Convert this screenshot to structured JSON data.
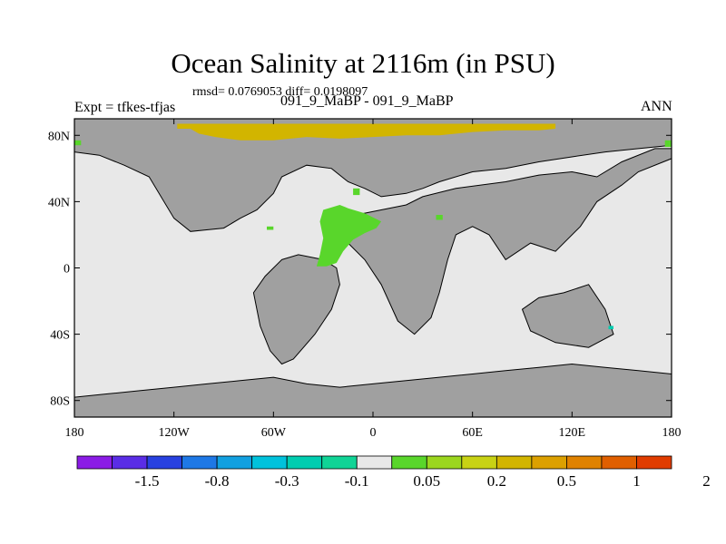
{
  "title": "Ocean Salinity at 2116m (in PSU)",
  "stats_text": "rmsd= 0.0769053 diff= 0.0198097",
  "experiment_label": "Expt = tfkes-tfjas",
  "subtitle": "091_9_MaBP - 091_9_MaBP",
  "season_label": "ANN",
  "colors": {
    "ocean_neutral": "#e8e8e8",
    "land": "#a0a0a0",
    "positive_small": "#59d62b",
    "positive_mid": "#d2b500",
    "negative_small": "#00cdb0"
  },
  "chart_data": {
    "type": "heatmap",
    "projection": "cylindrical-equidistant",
    "xlim": [
      -180,
      180
    ],
    "ylim": [
      -90,
      90
    ],
    "x_ticks": [
      {
        "value": -180,
        "label": "180"
      },
      {
        "value": -120,
        "label": "120W"
      },
      {
        "value": -60,
        "label": "60W"
      },
      {
        "value": 0,
        "label": "0"
      },
      {
        "value": 60,
        "label": "60E"
      },
      {
        "value": 120,
        "label": "120E"
      },
      {
        "value": 180,
        "label": "180"
      }
    ],
    "y_ticks": [
      {
        "value": 80,
        "label": "80N"
      },
      {
        "value": 40,
        "label": "40N"
      },
      {
        "value": 0,
        "label": "0"
      },
      {
        "value": -40,
        "label": "40S"
      },
      {
        "value": -80,
        "label": "80S"
      }
    ],
    "colorbar": {
      "colors": [
        "#8b1ce6",
        "#5a2de6",
        "#2841e0",
        "#1e78e6",
        "#12a0e0",
        "#00c2dc",
        "#00cdb0",
        "#10d496",
        "#e8e8e8",
        "#59d62b",
        "#9bd61e",
        "#c8d214",
        "#d2b500",
        "#dca000",
        "#e08200",
        "#e05f00",
        "#e03c00"
      ],
      "labels": [
        "-1.5",
        "-0.8",
        "-0.3",
        "-0.1",
        "0.05",
        "0.2",
        "0.5",
        "1",
        "2"
      ],
      "label_boundaries": [
        2,
        4,
        6,
        8,
        10,
        12,
        14,
        16,
        18
      ]
    },
    "anomaly_regions": [
      {
        "name": "arctic-high-anomaly",
        "class": "positive_mid",
        "polygon": [
          [
            -118,
            86
          ],
          [
            -118,
            84
          ],
          [
            -110,
            84
          ],
          [
            -105,
            81
          ],
          [
            -95,
            79
          ],
          [
            -80,
            77
          ],
          [
            -60,
            77
          ],
          [
            -40,
            79
          ],
          [
            -20,
            78
          ],
          [
            0,
            79
          ],
          [
            20,
            80
          ],
          [
            40,
            80
          ],
          [
            60,
            82
          ],
          [
            80,
            83
          ],
          [
            100,
            83
          ],
          [
            110,
            84
          ],
          [
            110,
            87
          ],
          [
            -118,
            87
          ]
        ]
      },
      {
        "name": "north-atlantic-anomaly",
        "class": "positive_small",
        "polygon": [
          [
            -30,
            35
          ],
          [
            -20,
            38
          ],
          [
            -15,
            36
          ],
          [
            -5,
            33
          ],
          [
            5,
            28
          ],
          [
            2,
            24
          ],
          [
            -5,
            21
          ],
          [
            -12,
            17
          ],
          [
            -18,
            10
          ],
          [
            -22,
            3
          ],
          [
            -28,
            1
          ],
          [
            -34,
            1
          ],
          [
            -32,
            8
          ],
          [
            -30,
            18
          ],
          [
            -32,
            28
          ]
        ]
      },
      {
        "name": "atlantic-small-patch-1",
        "class": "positive_small",
        "polygon": [
          [
            -12,
            48
          ],
          [
            -8,
            48
          ],
          [
            -8,
            44
          ],
          [
            -12,
            44
          ]
        ]
      },
      {
        "name": "atlantic-small-patch-2",
        "class": "positive_small",
        "polygon": [
          [
            38,
            32
          ],
          [
            42,
            32
          ],
          [
            42,
            29
          ],
          [
            38,
            29
          ]
        ]
      },
      {
        "name": "pacific-small-patch",
        "class": "positive_small",
        "polygon": [
          [
            -64,
            25
          ],
          [
            -60,
            25
          ],
          [
            -60,
            23
          ],
          [
            -64,
            23
          ]
        ]
      },
      {
        "name": "northwest-edge-patch",
        "class": "positive_small",
        "polygon": [
          [
            -180,
            77
          ],
          [
            -176,
            77
          ],
          [
            -176,
            74
          ],
          [
            -180,
            74
          ]
        ]
      },
      {
        "name": "northeast-edge-patch",
        "class": "positive_small",
        "polygon": [
          [
            176,
            77
          ],
          [
            180,
            77
          ],
          [
            180,
            73
          ],
          [
            176,
            73
          ]
        ]
      },
      {
        "name": "southeast-small-patch",
        "class": "negative_small",
        "polygon": [
          [
            142,
            -35
          ],
          [
            145,
            -35
          ],
          [
            145,
            -37
          ],
          [
            142,
            -37
          ]
        ]
      }
    ]
  },
  "land_polygons": [
    {
      "name": "north-america-eurasia-north",
      "polygon": [
        [
          -180,
          90
        ],
        [
          180,
          90
        ],
        [
          180,
          74
        ],
        [
          160,
          72
        ],
        [
          140,
          70
        ],
        [
          120,
          67
        ],
        [
          100,
          64
        ],
        [
          80,
          60
        ],
        [
          60,
          58
        ],
        [
          40,
          52
        ],
        [
          30,
          48
        ],
        [
          20,
          45
        ],
        [
          5,
          43
        ],
        [
          -5,
          48
        ],
        [
          -15,
          52
        ],
        [
          -25,
          60
        ],
        [
          -40,
          62
        ],
        [
          -55,
          55
        ],
        [
          -60,
          45
        ],
        [
          -70,
          35
        ],
        [
          -80,
          30
        ],
        [
          -90,
          24
        ],
        [
          -110,
          22
        ],
        [
          -120,
          30
        ],
        [
          -135,
          55
        ],
        [
          -150,
          62
        ],
        [
          -165,
          68
        ],
        [
          -180,
          70
        ]
      ]
    },
    {
      "name": "eurasia-africa-india",
      "polygon": [
        [
          30,
          43
        ],
        [
          50,
          48
        ],
        [
          80,
          52
        ],
        [
          100,
          56
        ],
        [
          120,
          58
        ],
        [
          135,
          55
        ],
        [
          150,
          64
        ],
        [
          170,
          72
        ],
        [
          180,
          72
        ],
        [
          180,
          66
        ],
        [
          160,
          58
        ],
        [
          150,
          50
        ],
        [
          135,
          40
        ],
        [
          125,
          25
        ],
        [
          110,
          10
        ],
        [
          95,
          15
        ],
        [
          80,
          5
        ],
        [
          70,
          20
        ],
        [
          60,
          25
        ],
        [
          50,
          20
        ],
        [
          45,
          5
        ],
        [
          40,
          -15
        ],
        [
          35,
          -30
        ],
        [
          25,
          -40
        ],
        [
          15,
          -32
        ],
        [
          5,
          -10
        ],
        [
          -5,
          5
        ],
        [
          -15,
          15
        ],
        [
          -20,
          25
        ],
        [
          -10,
          32
        ],
        [
          5,
          35
        ],
        [
          20,
          38
        ]
      ]
    },
    {
      "name": "south-america",
      "polygon": [
        [
          -55,
          5
        ],
        [
          -45,
          8
        ],
        [
          -30,
          5
        ],
        [
          -22,
          0
        ],
        [
          -20,
          -10
        ],
        [
          -25,
          -25
        ],
        [
          -35,
          -40
        ],
        [
          -48,
          -55
        ],
        [
          -55,
          -58
        ],
        [
          -62,
          -50
        ],
        [
          -68,
          -35
        ],
        [
          -72,
          -15
        ],
        [
          -65,
          -5
        ]
      ]
    },
    {
      "name": "australia",
      "polygon": [
        [
          90,
          -25
        ],
        [
          100,
          -18
        ],
        [
          115,
          -15
        ],
        [
          130,
          -10
        ],
        [
          140,
          -25
        ],
        [
          145,
          -40
        ],
        [
          130,
          -48
        ],
        [
          110,
          -45
        ],
        [
          95,
          -38
        ]
      ]
    },
    {
      "name": "antarctica",
      "polygon": [
        [
          -180,
          -78
        ],
        [
          -160,
          -76
        ],
        [
          -140,
          -74
        ],
        [
          -120,
          -72
        ],
        [
          -100,
          -70
        ],
        [
          -80,
          -68
        ],
        [
          -60,
          -66
        ],
        [
          -40,
          -70
        ],
        [
          -20,
          -72
        ],
        [
          0,
          -70
        ],
        [
          20,
          -68
        ],
        [
          40,
          -66
        ],
        [
          60,
          -64
        ],
        [
          80,
          -62
        ],
        [
          100,
          -60
        ],
        [
          120,
          -58
        ],
        [
          140,
          -60
        ],
        [
          160,
          -62
        ],
        [
          180,
          -64
        ],
        [
          180,
          -90
        ],
        [
          -180,
          -90
        ]
      ]
    }
  ]
}
